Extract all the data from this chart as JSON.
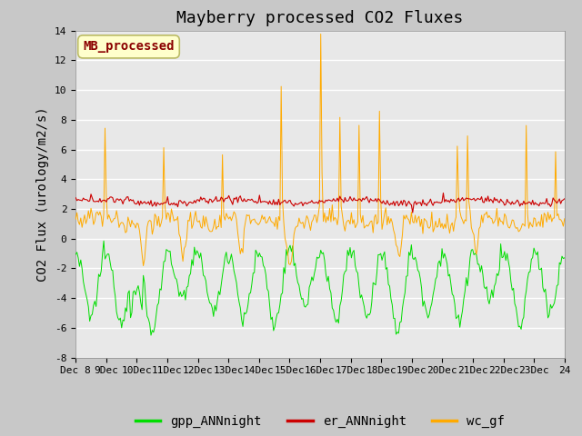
{
  "title": "Mayberry processed CO2 Fluxes",
  "ylabel": "CO2 Flux (urology/m2/s)",
  "ylim": [
    -8,
    14
  ],
  "yticks": [
    -8,
    -6,
    -4,
    -2,
    0,
    2,
    4,
    6,
    8,
    10,
    12,
    14
  ],
  "n_points": 384,
  "x_start": 8,
  "x_end": 24,
  "xtick_positions": [
    8,
    9,
    10,
    11,
    12,
    13,
    14,
    15,
    16,
    17,
    18,
    19,
    20,
    21,
    22,
    23,
    24
  ],
  "xtick_labels": [
    "Dec 8",
    "9Dec",
    "10Dec",
    "11Dec",
    "12Dec",
    "13Dec",
    "14Dec",
    "15Dec",
    "16Dec",
    "17Dec",
    "18Dec",
    "19Dec",
    "20Dec",
    "21Dec",
    "22Dec",
    "23Dec",
    "24"
  ],
  "legend_labels": [
    "gpp_ANNnight",
    "er_ANNnight",
    "wc_gf"
  ],
  "colors": {
    "gpp": "#00dd00",
    "er": "#cc0000",
    "wc": "#ffaa00"
  },
  "annotation_text": "MB_processed",
  "annotation_color": "#8b0000",
  "annotation_bg": "#ffffcc",
  "annotation_border": "#bbbb66",
  "fig_bg": "#c8c8c8",
  "plot_bg": "#e8e8e8",
  "title_fontsize": 13,
  "axis_fontsize": 10,
  "tick_fontsize": 8,
  "legend_fontsize": 10
}
